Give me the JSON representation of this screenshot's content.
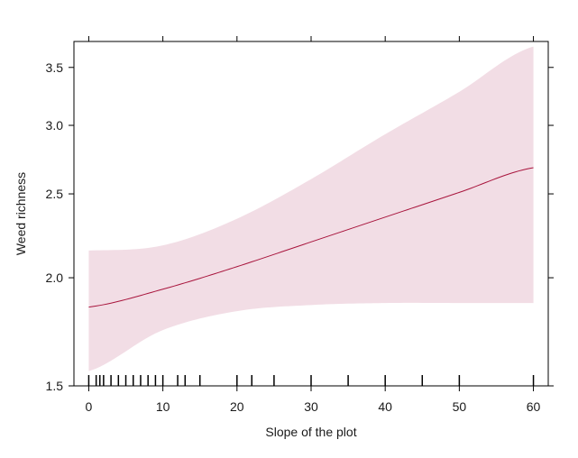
{
  "chart_data": {
    "type": "line",
    "title": "",
    "xlabel": "Slope of the plot",
    "ylabel": "Weed richness",
    "xlim": [
      -2,
      62
    ],
    "ylim": [
      1.5,
      3.75
    ],
    "y_scale": "log",
    "x_ticks": [
      0,
      10,
      20,
      30,
      40,
      50,
      60
    ],
    "x_tick_labels": [
      "0",
      "10",
      "20",
      "30",
      "40",
      "50",
      "60"
    ],
    "y_ticks": [
      1.5,
      2.0,
      2.5,
      3.0,
      3.5
    ],
    "y_tick_labels": [
      "1.5",
      "2.0",
      "2.5",
      "3.0",
      "3.5"
    ],
    "grid": false,
    "legend": "none",
    "colors": {
      "line": "#a8143c",
      "band": "#f2dde5",
      "axis": "#000000"
    },
    "series": [
      {
        "x": [
          0,
          10,
          20,
          30,
          40,
          50,
          60
        ],
        "fit": [
          1.85,
          1.94,
          2.06,
          2.2,
          2.35,
          2.51,
          2.68
        ],
        "lower": [
          1.56,
          1.74,
          1.83,
          1.86,
          1.87,
          1.87,
          1.87
        ],
        "upper": [
          2.15,
          2.18,
          2.34,
          2.6,
          2.93,
          3.28,
          3.7
        ]
      }
    ],
    "rug_x": [
      0,
      1,
      1.5,
      2,
      3,
      4,
      5,
      6,
      7,
      8,
      9,
      10,
      12,
      13,
      15,
      20,
      22,
      25,
      30,
      35,
      40,
      45,
      50,
      60
    ]
  }
}
